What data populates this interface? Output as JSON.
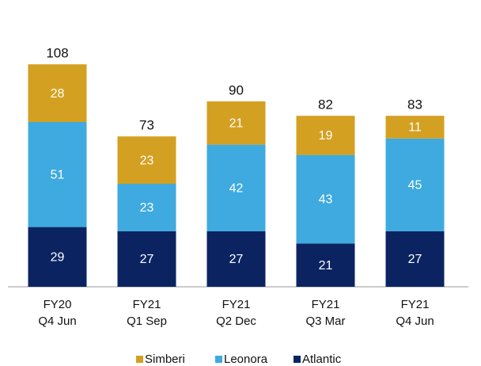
{
  "chart_data": {
    "type": "stacked_bar",
    "categories": [
      [
        "FY20",
        "Q4 Jun"
      ],
      [
        "FY21",
        "Q1 Sep"
      ],
      [
        "FY21",
        "Q2 Dec"
      ],
      [
        "FY21",
        "Q3 Mar"
      ],
      [
        "FY21",
        "Q4 Jun"
      ]
    ],
    "series": [
      {
        "name": "Simberi",
        "color": "#d4a021",
        "values": [
          28,
          23,
          21,
          19,
          11
        ]
      },
      {
        "name": "Leonora",
        "color": "#3eaadf",
        "values": [
          51,
          23,
          42,
          43,
          45
        ]
      },
      {
        "name": "Atlantic",
        "color": "#0b2461",
        "values": [
          29,
          27,
          27,
          21,
          27
        ]
      }
    ],
    "totals": [
      108,
      73,
      90,
      82,
      83
    ]
  }
}
